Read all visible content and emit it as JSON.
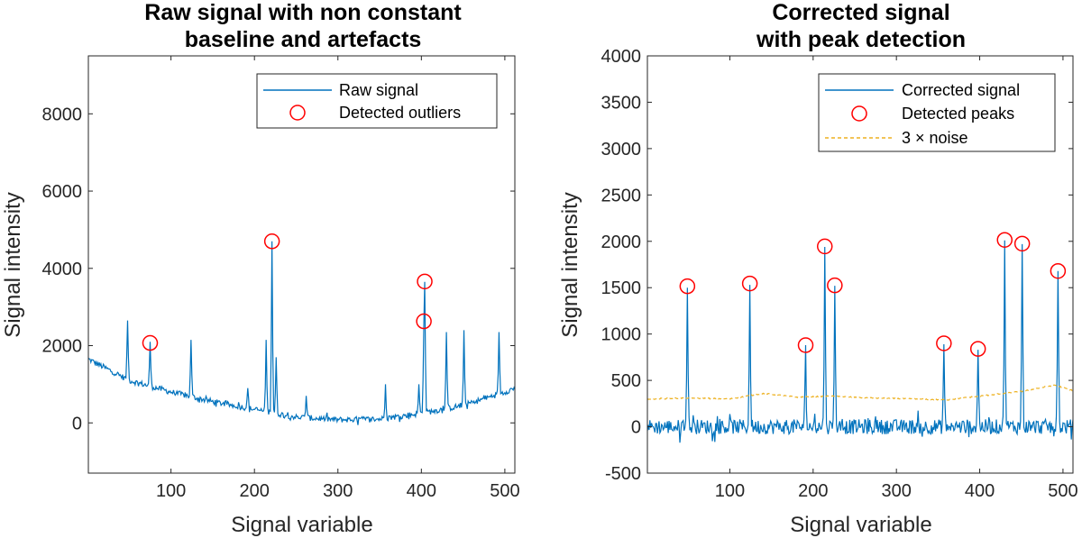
{
  "chart_data": [
    {
      "type": "line",
      "title_lines": [
        "Raw signal with non constant",
        "baseline and artefacts"
      ],
      "xlabel": "Signal variable",
      "ylabel": "Signal intensity",
      "xlim": [
        1,
        512
      ],
      "ylim": [
        -1300,
        9500
      ],
      "xticks": [
        100,
        200,
        300,
        400,
        500
      ],
      "yticks": [
        0,
        2000,
        4000,
        6000,
        8000
      ],
      "legend": {
        "position": "top-right",
        "entries": [
          "Raw signal",
          "Detected outliers"
        ]
      },
      "series": [
        {
          "name": "Raw signal",
          "color": "#0072BD",
          "baseline_points": [
            [
              1,
              1650
            ],
            [
              50,
              1100
            ],
            [
              100,
              800
            ],
            [
              150,
              550
            ],
            [
              200,
              350
            ],
            [
              250,
              150
            ],
            [
              300,
              80
            ],
            [
              350,
              100
            ],
            [
              400,
              250
            ],
            [
              450,
              450
            ],
            [
              500,
              800
            ],
            [
              512,
              900
            ]
          ],
          "noise_amplitude": 75,
          "peaks": [
            [
              48,
              2650
            ],
            [
              75,
              2100
            ],
            [
              124,
              2150
            ],
            [
              192,
              900
            ],
            [
              214,
              2150
            ],
            [
              221,
              4700
            ],
            [
              226,
              1700
            ],
            [
              262,
              700
            ],
            [
              357,
              1000
            ],
            [
              397,
              1000
            ],
            [
              403,
              2600
            ],
            [
              404,
              3650
            ],
            [
              430,
              2350
            ],
            [
              451,
              2400
            ],
            [
              493,
              2350
            ]
          ]
        }
      ],
      "markers": [
        {
          "name": "Detected outliers",
          "color": "#FF0000",
          "points": [
            [
              75,
              2070
            ],
            [
              221,
              4700
            ],
            [
              404,
              3660
            ],
            [
              403,
              2630
            ]
          ]
        }
      ]
    },
    {
      "type": "line",
      "title_lines": [
        "Corrected signal",
        "with peak detection"
      ],
      "xlabel": "Signal variable",
      "ylabel": "Signal intensity",
      "xlim": [
        1,
        512
      ],
      "ylim": [
        -500,
        4000
      ],
      "xticks": [
        100,
        200,
        300,
        400,
        500
      ],
      "yticks": [
        -500,
        0,
        500,
        1000,
        1500,
        2000,
        2500,
        3000,
        3500,
        4000
      ],
      "legend": {
        "position": "top-right",
        "entries": [
          "Corrected signal",
          "Detected peaks",
          "3 × noise"
        ]
      },
      "series": [
        {
          "name": "Corrected signal",
          "color": "#0072BD",
          "noise_amplitude": 80,
          "peaks": [
            [
              49,
              1500
            ],
            [
              124,
              1530
            ],
            [
              191,
              880
            ],
            [
              214,
              1940
            ],
            [
              226,
              1520
            ],
            [
              357,
              890
            ],
            [
              398,
              830
            ],
            [
              430,
              2010
            ],
            [
              451,
              1970
            ],
            [
              494,
              1680
            ]
          ]
        },
        {
          "name": "3 × noise",
          "color": "#EDB120",
          "dashed": true,
          "points": [
            [
              1,
              300
            ],
            [
              50,
              310
            ],
            [
              100,
              300
            ],
            [
              140,
              360
            ],
            [
              180,
              320
            ],
            [
              220,
              330
            ],
            [
              270,
              310
            ],
            [
              320,
              300
            ],
            [
              360,
              290
            ],
            [
              400,
              330
            ],
            [
              450,
              380
            ],
            [
              490,
              450
            ],
            [
              512,
              390
            ]
          ]
        }
      ],
      "markers": [
        {
          "name": "Detected peaks",
          "color": "#FF0000",
          "points": [
            [
              49,
              1515
            ],
            [
              124,
              1545
            ],
            [
              191,
              880
            ],
            [
              214,
              1945
            ],
            [
              226,
              1525
            ],
            [
              357,
              900
            ],
            [
              398,
              840
            ],
            [
              430,
              2015
            ],
            [
              451,
              1975
            ],
            [
              494,
              1680
            ]
          ]
        }
      ]
    }
  ]
}
